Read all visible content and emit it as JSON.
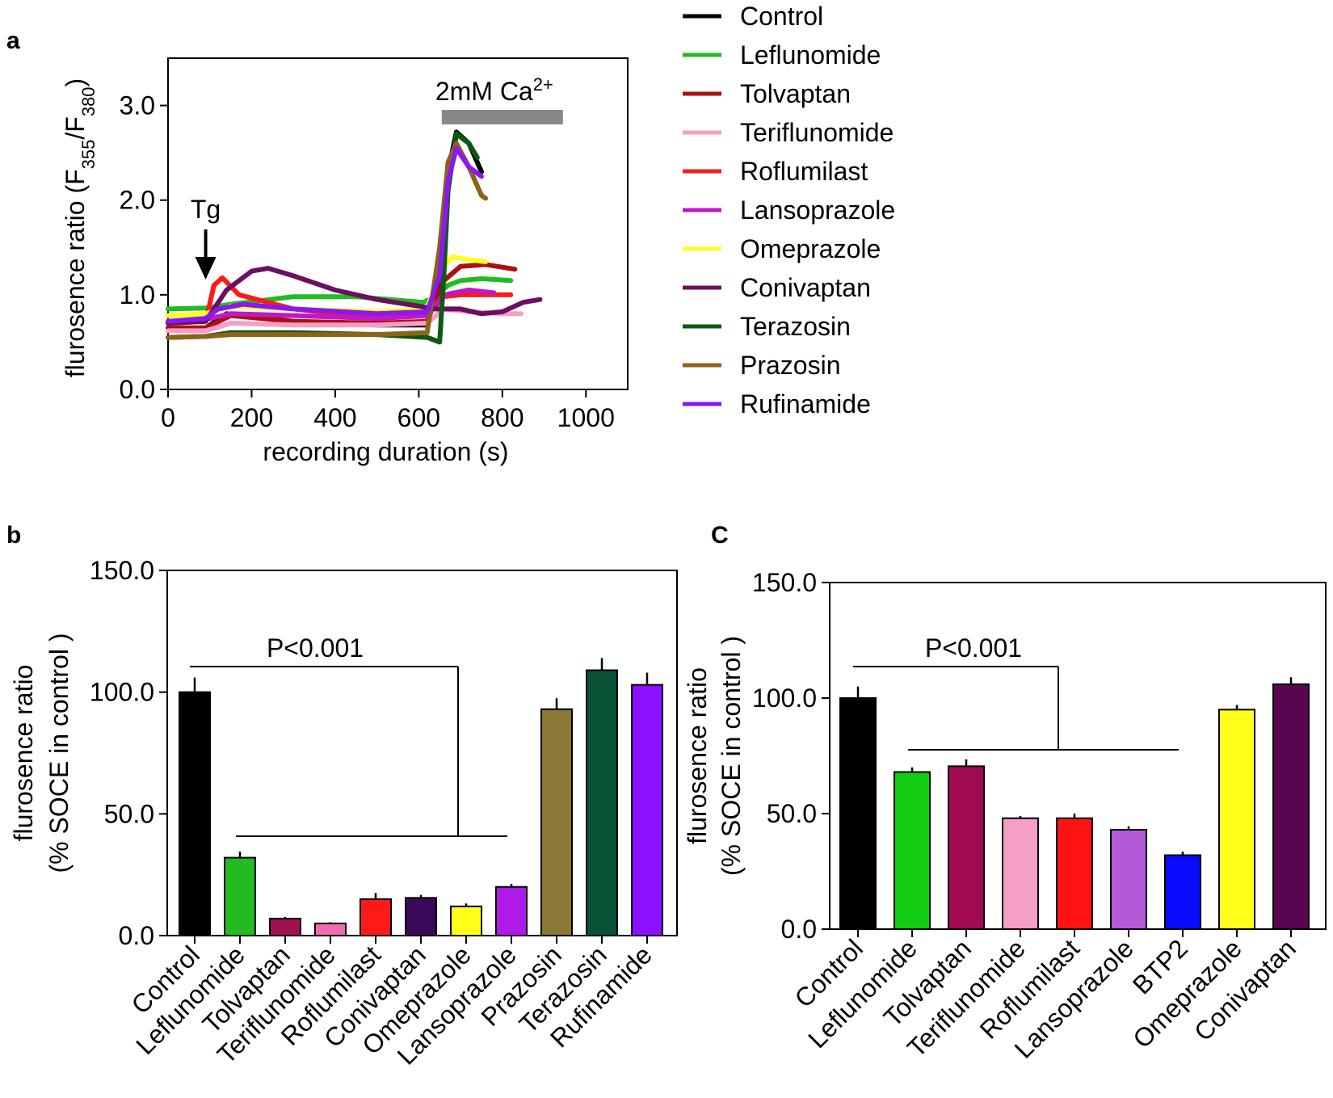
{
  "chart_data": [
    {
      "panel": "a",
      "type": "line",
      "xlabel": "recording duration (s)",
      "ylabel_main": "flurosence ratio (F",
      "ylabel_sub1": "355",
      "ylabel_mid": "/F",
      "ylabel_sub2": "380",
      "ylabel_end": ")",
      "xlim": [
        0,
        1100
      ],
      "ylim": [
        0,
        3.5
      ],
      "xticks": [
        0,
        200,
        400,
        600,
        800,
        1000
      ],
      "xtick_labels": [
        "0",
        "200",
        "400",
        "600",
        "800",
        "1000"
      ],
      "yticks": [
        0,
        1,
        2,
        3
      ],
      "ytick_labels": [
        "0.0",
        "1.0",
        "2.0",
        "3.0"
      ],
      "annotation_tg": "Tg",
      "tg_time": 90,
      "annotation_ca_main": "2mM Ca",
      "annotation_ca_sup": "2+",
      "ca_bar_range": [
        655,
        945
      ],
      "series": [
        {
          "name": "Control",
          "color": "#000000",
          "points": [
            [
              0,
              0.65
            ],
            [
              90,
              0.65
            ],
            [
              140,
              0.8
            ],
            [
              300,
              0.72
            ],
            [
              500,
              0.68
            ],
            [
              620,
              0.68
            ],
            [
              650,
              1.2
            ],
            [
              670,
              2.3
            ],
            [
              690,
              2.72
            ],
            [
              720,
              2.6
            ],
            [
              740,
              2.4
            ],
            [
              750,
              2.3
            ]
          ]
        },
        {
          "name": "Leflunomide",
          "color": "#22bb22",
          "points": [
            [
              0,
              0.85
            ],
            [
              90,
              0.86
            ],
            [
              150,
              0.9
            ],
            [
              300,
              0.98
            ],
            [
              450,
              0.98
            ],
            [
              610,
              0.92
            ],
            [
              640,
              0.98
            ],
            [
              670,
              1.1
            ],
            [
              700,
              1.15
            ],
            [
              750,
              1.17
            ],
            [
              820,
              1.15
            ]
          ]
        },
        {
          "name": "Tolvaptan",
          "color": "#aa1111",
          "points": [
            [
              0,
              0.65
            ],
            [
              90,
              0.65
            ],
            [
              150,
              0.78
            ],
            [
              300,
              0.72
            ],
            [
              500,
              0.7
            ],
            [
              620,
              0.72
            ],
            [
              660,
              1.15
            ],
            [
              700,
              1.3
            ],
            [
              760,
              1.32
            ],
            [
              830,
              1.27
            ]
          ]
        },
        {
          "name": "Teriflunomide",
          "color": "#f59ec6",
          "points": [
            [
              0,
              0.62
            ],
            [
              90,
              0.62
            ],
            [
              150,
              0.7
            ],
            [
              300,
              0.68
            ],
            [
              500,
              0.68
            ],
            [
              620,
              0.7
            ],
            [
              660,
              0.85
            ],
            [
              720,
              0.82
            ],
            [
              800,
              0.8
            ],
            [
              845,
              0.8
            ]
          ]
        },
        {
          "name": "Roflumilast",
          "color": "#ff1a1a",
          "points": [
            [
              0,
              0.7
            ],
            [
              90,
              0.72
            ],
            [
              110,
              1.1
            ],
            [
              130,
              1.18
            ],
            [
              170,
              1.0
            ],
            [
              300,
              0.85
            ],
            [
              500,
              0.75
            ],
            [
              620,
              0.78
            ],
            [
              660,
              0.98
            ],
            [
              700,
              1.0
            ],
            [
              760,
              1.0
            ],
            [
              820,
              1.0
            ]
          ]
        },
        {
          "name": "Lansoprazole",
          "color": "#c218c2",
          "points": [
            [
              0,
              0.72
            ],
            [
              90,
              0.74
            ],
            [
              150,
              0.8
            ],
            [
              300,
              0.78
            ],
            [
              500,
              0.75
            ],
            [
              620,
              0.78
            ],
            [
              660,
              1.0
            ],
            [
              720,
              1.05
            ],
            [
              780,
              1.02
            ]
          ]
        },
        {
          "name": "Omeprazole",
          "color": "#ffff22",
          "points": [
            [
              0,
              0.78
            ],
            [
              90,
              0.8
            ],
            [
              150,
              0.88
            ],
            [
              300,
              0.85
            ],
            [
              500,
              0.82
            ],
            [
              620,
              0.85
            ],
            [
              650,
              1.25
            ],
            [
              680,
              1.4
            ],
            [
              720,
              1.37
            ],
            [
              760,
              1.35
            ]
          ]
        },
        {
          "name": "Conivaptan",
          "color": "#6b1060",
          "points": [
            [
              0,
              0.7
            ],
            [
              90,
              0.72
            ],
            [
              140,
              1.05
            ],
            [
              200,
              1.25
            ],
            [
              240,
              1.28
            ],
            [
              300,
              1.2
            ],
            [
              400,
              1.05
            ],
            [
              500,
              0.95
            ],
            [
              600,
              0.88
            ],
            [
              640,
              0.85
            ],
            [
              700,
              0.85
            ],
            [
              750,
              0.8
            ],
            [
              800,
              0.82
            ],
            [
              850,
              0.92
            ],
            [
              890,
              0.95
            ]
          ]
        },
        {
          "name": "Terazosin",
          "color": "#0a5a12",
          "points": [
            [
              0,
              0.55
            ],
            [
              90,
              0.56
            ],
            [
              150,
              0.6
            ],
            [
              300,
              0.6
            ],
            [
              500,
              0.58
            ],
            [
              620,
              0.55
            ],
            [
              650,
              0.5
            ],
            [
              660,
              1.2
            ],
            [
              670,
              2.1
            ],
            [
              690,
              2.7
            ],
            [
              720,
              2.6
            ],
            [
              740,
              2.45
            ]
          ]
        },
        {
          "name": "Prazosin",
          "color": "#8c6418",
          "points": [
            [
              0,
              0.55
            ],
            [
              90,
              0.56
            ],
            [
              150,
              0.58
            ],
            [
              300,
              0.58
            ],
            [
              500,
              0.58
            ],
            [
              620,
              0.6
            ],
            [
              650,
              1.5
            ],
            [
              670,
              2.4
            ],
            [
              690,
              2.6
            ],
            [
              720,
              2.35
            ],
            [
              750,
              2.05
            ],
            [
              760,
              2.02
            ]
          ]
        },
        {
          "name": "Rufinamide",
          "color": "#8b18f0",
          "points": [
            [
              0,
              0.72
            ],
            [
              90,
              0.75
            ],
            [
              120,
              0.85
            ],
            [
              180,
              0.9
            ],
            [
              300,
              0.85
            ],
            [
              500,
              0.8
            ],
            [
              620,
              0.82
            ],
            [
              650,
              1.2
            ],
            [
              670,
              2.2
            ],
            [
              690,
              2.55
            ],
            [
              720,
              2.35
            ],
            [
              750,
              2.25
            ]
          ]
        }
      ]
    },
    {
      "panel": "b",
      "type": "bar",
      "ylabel_line1": "flurosence ratio",
      "ylabel_line2": "(% SOCE in control )",
      "ylim": [
        0,
        150
      ],
      "yticks": [
        0,
        50,
        100,
        150
      ],
      "ytick_labels": [
        "0.0",
        "50.0",
        "100.0",
        "150.0"
      ],
      "categories": [
        "Control",
        "Leflunomide",
        "Tolvaptan",
        "Teriflunomide",
        "Roflumilast",
        "Conivaptan",
        "Omeprazole",
        "Lansoprazole",
        "Prazosin",
        "Terazosin",
        "Rufinamide"
      ],
      "values": [
        100,
        32,
        7,
        5,
        15,
        15.5,
        12,
        20,
        93,
        109,
        103
      ],
      "errors": [
        6,
        2.5,
        0.7,
        0.5,
        2.5,
        1.2,
        1.2,
        1.2,
        4.5,
        5,
        5
      ],
      "colors": [
        "#000000",
        "#22bb22",
        "#a01050",
        "#f06ab0",
        "#ff1a1a",
        "#3a0a5a",
        "#ffff1a",
        "#b01ae8",
        "#8a7838",
        "#0a5235",
        "#8a10ff"
      ],
      "annotation": "P<0.001",
      "bracket_groups": [
        "Control",
        [
          "Leflunomide",
          "Lansoprazole"
        ]
      ]
    },
    {
      "panel": "C",
      "type": "bar",
      "ylabel_line1": "flurosence ratio",
      "ylabel_line2": "(% SOCE in control )",
      "ylim": [
        0,
        150
      ],
      "yticks": [
        0,
        50,
        100,
        150
      ],
      "ytick_labels": [
        "0.0",
        "50.0",
        "100.0",
        "150.0"
      ],
      "categories": [
        "Control",
        "Leflunomide",
        "Tolvaptan",
        "Teriflunomide",
        "Roflumilast",
        "Lansoprazole",
        "BTP2",
        "Omeprazole",
        "Conivaptan"
      ],
      "values": [
        100,
        68,
        70.5,
        48,
        48,
        43,
        32,
        95,
        106
      ],
      "errors": [
        5,
        2,
        3,
        1,
        2,
        1.5,
        1.5,
        2,
        3
      ],
      "colors": [
        "#000000",
        "#11cc11",
        "#a00a50",
        "#f59ec6",
        "#ff1212",
        "#b45ad8",
        "#0a0aff",
        "#ffff1a",
        "#5a0550"
      ],
      "annotation": "P<0.001",
      "bracket_groups": [
        "Control",
        [
          "Leflunomide",
          "BTP2"
        ]
      ]
    }
  ]
}
